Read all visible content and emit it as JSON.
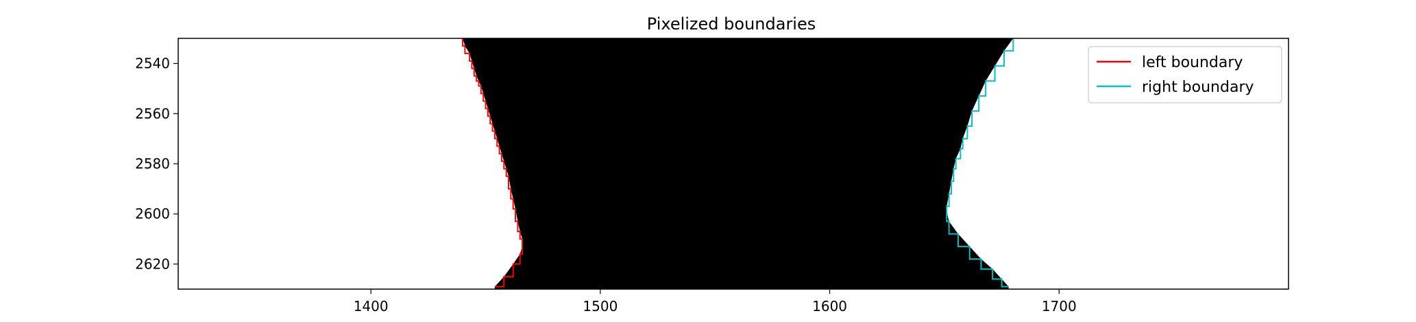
{
  "chart_data": {
    "type": "line",
    "title": "Pixelized boundaries",
    "xlabel": "",
    "ylabel": "",
    "xlim": [
      1316,
      1800
    ],
    "ylim": [
      2630,
      2530
    ],
    "y_inverted": true,
    "grid": false,
    "legend_position": "upper right",
    "background_image": "binary mask: black band between boundaries on white",
    "x_ticks": [
      1400,
      1500,
      1600,
      1700
    ],
    "y_ticks": [
      2540,
      2560,
      2580,
      2600,
      2620
    ],
    "series": [
      {
        "name": "left boundary",
        "color": "#ff0000",
        "x": [
          1440,
          1441,
          1443,
          1444,
          1445,
          1446,
          1447,
          1448,
          1449,
          1450,
          1451,
          1452,
          1453,
          1454,
          1455,
          1456,
          1457,
          1458,
          1459,
          1460,
          1461,
          1462,
          1463,
          1464,
          1465,
          1466,
          1466,
          1465,
          1462,
          1458,
          1454
        ],
        "y": [
          2530,
          2533,
          2536,
          2539,
          2542,
          2545,
          2547,
          2549,
          2552,
          2555,
          2558,
          2561,
          2564,
          2567,
          2570,
          2573,
          2576,
          2579,
          2582,
          2585,
          2590,
          2594,
          2598,
          2603,
          2607,
          2610,
          2613,
          2616,
          2620,
          2625,
          2629
        ]
      },
      {
        "name": "right boundary",
        "color": "#00bfbf",
        "x": [
          1680,
          1676,
          1672,
          1668,
          1665,
          1662,
          1660,
          1658,
          1657,
          1655,
          1654,
          1653,
          1652,
          1651,
          1651,
          1652,
          1656,
          1661,
          1666,
          1671,
          1675,
          1678
        ],
        "y": [
          2530,
          2535,
          2541,
          2547,
          2553,
          2559,
          2565,
          2570,
          2574,
          2578,
          2582,
          2587,
          2592,
          2597,
          2599,
          2603,
          2608,
          2613,
          2618,
          2622,
          2626,
          2629
        ]
      }
    ]
  }
}
